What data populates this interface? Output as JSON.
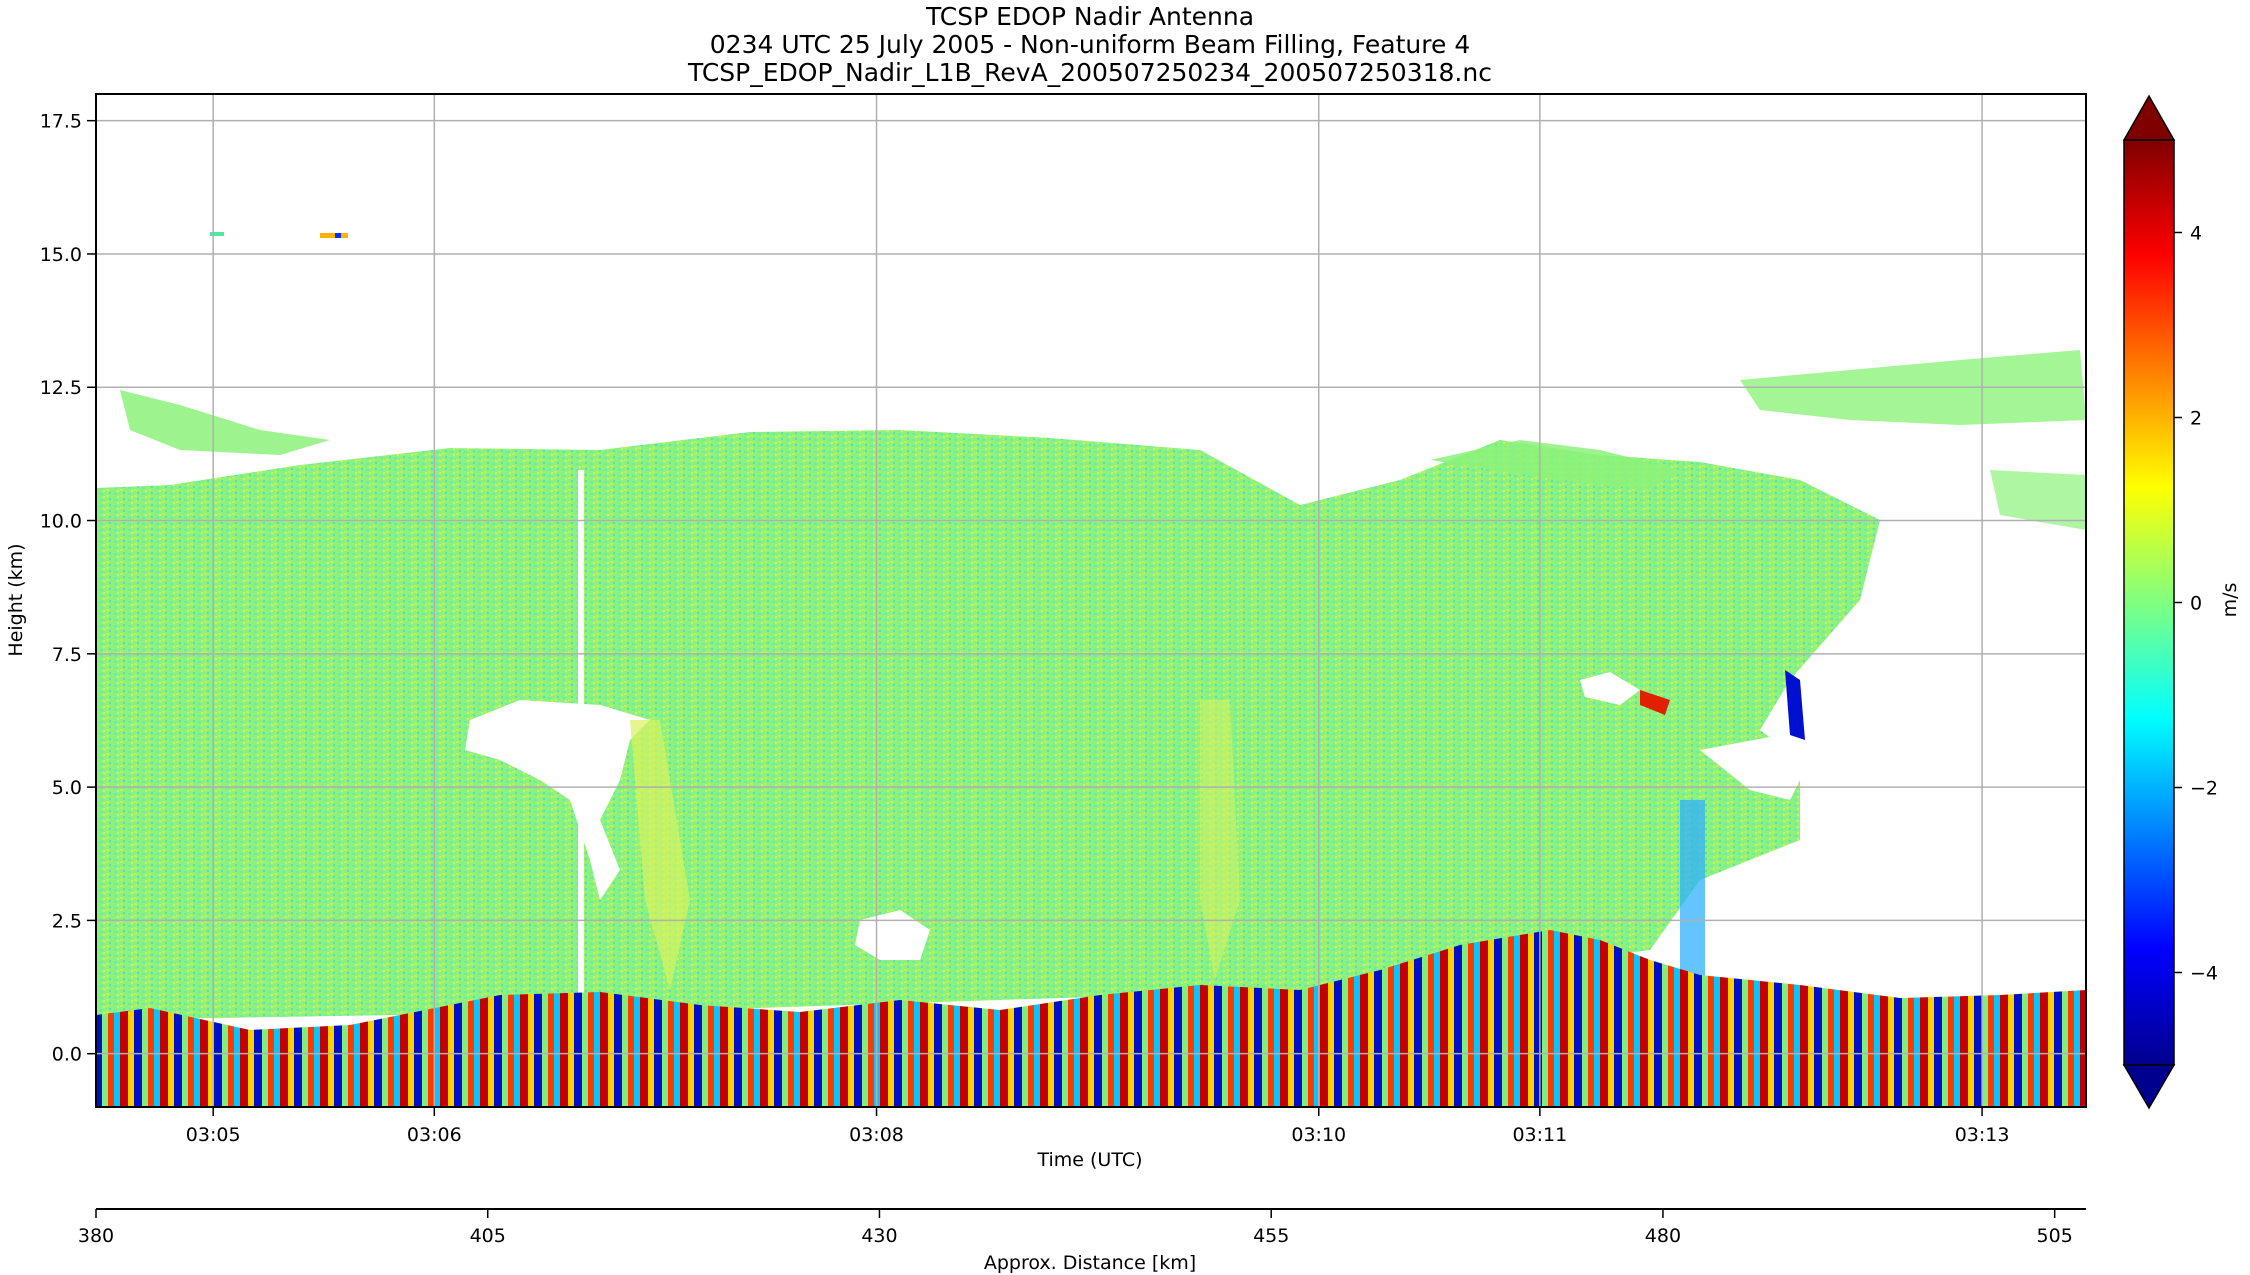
{
  "chart_data": {
    "type": "heatmap",
    "title": "TCSP EDOP Nadir Antenna",
    "subtitle": "0234 UTC 25 July 2005 - Non-uniform Beam Filling, Feature 4",
    "source_file": "TCSP_EDOP_Nadir_L1B_RevA_200507250234_200507250318.nc",
    "xlabel": "Time (UTC)",
    "ylabel": "Height (km)",
    "x_ticks": [
      "03:05",
      "03:06",
      "03:08",
      "03:10",
      "03:11",
      "03:13"
    ],
    "y_ticks": [
      "0.0",
      "2.5",
      "5.0",
      "7.5",
      "10.0",
      "12.5",
      "15.0",
      "17.5"
    ],
    "ylim": [
      -1.0,
      18.0
    ],
    "grid": true,
    "secondary_x_axis": {
      "label": "Approx. Distance [km]",
      "ticks": [
        "380",
        "405",
        "430",
        "455",
        "480",
        "505"
      ],
      "range": [
        380,
        507
      ]
    },
    "colorbar": {
      "label": "m/s",
      "colormap": "jet",
      "range": [
        -5,
        5
      ],
      "ticks": [
        "4",
        "2",
        "0",
        "−2",
        "−4"
      ],
      "extend": "both"
    },
    "field_summary": {
      "background_velocity": 0.3,
      "surface_band_velocity_range": [
        -5,
        5
      ],
      "echo_top_km_approx": [
        10.5,
        12.5
      ],
      "surface_height_km_range": [
        0.3,
        2.2
      ]
    }
  }
}
